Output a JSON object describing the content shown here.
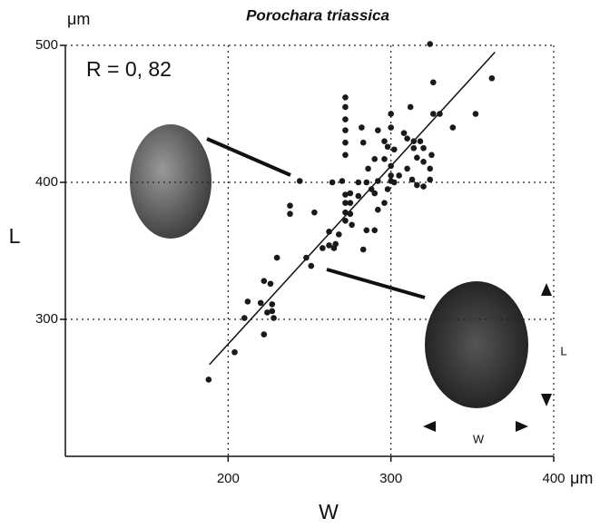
{
  "chart_data": {
    "type": "scatter",
    "title": "Porochara triassica",
    "y_unit": "μm",
    "x_unit": "μm",
    "annotation": "R = 0, 82",
    "xlabel": "W",
    "ylabel": "L",
    "inset_labels": {
      "length": "L",
      "width": "W"
    },
    "xlim": [
      100,
      400
    ],
    "ylim": [
      200,
      500
    ],
    "xticks": [
      200,
      300,
      400
    ],
    "yticks": [
      300,
      400,
      500
    ],
    "grid": true,
    "color": "#1a1a1a",
    "x": [
      188,
      204,
      212,
      210,
      222,
      220,
      222,
      226,
      227,
      224,
      227,
      228,
      238,
      238,
      251,
      248,
      253,
      262,
      264,
      262,
      244,
      270,
      272,
      272,
      275,
      275,
      272,
      275,
      272,
      276,
      268,
      265,
      283,
      285,
      290,
      280,
      280,
      285,
      288,
      290,
      292,
      286,
      290,
      283,
      292,
      296,
      300,
      300,
      300,
      298,
      302,
      305,
      296,
      300,
      300,
      296,
      292,
      272,
      272,
      272,
      272,
      272,
      272,
      282,
      310,
      314,
      318,
      314,
      316,
      320,
      320,
      325,
      324,
      324,
      313,
      310,
      308,
      312,
      326,
      330,
      326,
      324,
      338,
      352,
      362,
      320,
      316,
      302,
      298,
      258,
      266,
      230
    ],
    "values": [
      256,
      276,
      313,
      301,
      289,
      312,
      328,
      326,
      306,
      305,
      311,
      301,
      383,
      377,
      339,
      345,
      378,
      364,
      400,
      354,
      401,
      401,
      391,
      385,
      392,
      385,
      378,
      377,
      372,
      369,
      362,
      352,
      351,
      365,
      365,
      390,
      400,
      400,
      395,
      392,
      401,
      410,
      417,
      429,
      438,
      417,
      412,
      405,
      401,
      395,
      400,
      405,
      430,
      440,
      450,
      385,
      380,
      420,
      429,
      438,
      446,
      455,
      462,
      440,
      432,
      430,
      430,
      425,
      418,
      415,
      425,
      420,
      410,
      402,
      402,
      410,
      436,
      455,
      450,
      450,
      473,
      501,
      440,
      450,
      476,
      397,
      398,
      424,
      426,
      352,
      355,
      345
    ],
    "trendline": {
      "x": [
        188.5,
        363.9
      ],
      "y": [
        267,
        495
      ]
    }
  }
}
